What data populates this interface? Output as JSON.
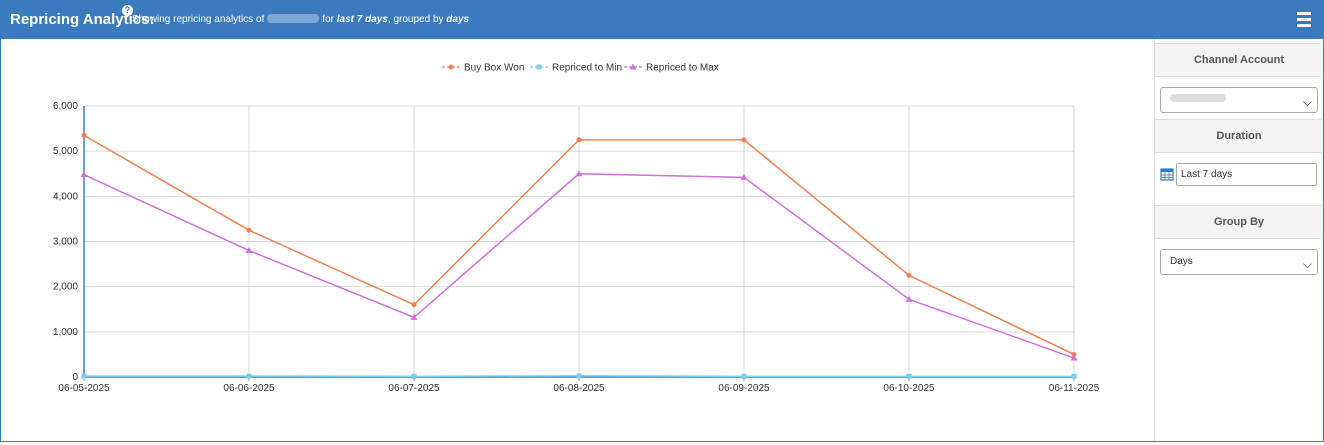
{
  "header": {
    "title": "Repricing Analytics:",
    "help_glyph": "?",
    "subtitle_prefix": "Showing repricing analytics of",
    "subtitle_for": "for",
    "subtitle_duration": "last 7 days",
    "subtitle_grouped": ", grouped by",
    "subtitle_group": "days",
    "menu_icon": "hamburger-menu-icon"
  },
  "sidebar": {
    "channel_account_label": "Channel Account",
    "duration_label": "Duration",
    "duration_value": "Last 7 days",
    "group_by_label": "Group By",
    "group_by_value": "Days",
    "calendar_icon": "calendar-icon"
  },
  "chart_data": {
    "type": "line",
    "x": [
      "06-05-2025",
      "06-06-2025",
      "06-07-2025",
      "06-08-2025",
      "06-09-2025",
      "06-10-2025",
      "06-11-2025"
    ],
    "y_ticks": [
      "0",
      "1,000",
      "2,000",
      "3,000",
      "4,000",
      "5,000",
      "6,000"
    ],
    "ylim": [
      0,
      6000
    ],
    "grid": true,
    "legend_position": "top-center",
    "series": [
      {
        "name": "Buy Box Won",
        "color": "#f08050",
        "marker": "circle",
        "values": [
          5350,
          3250,
          1600,
          5250,
          5250,
          2250,
          500
        ]
      },
      {
        "name": "Repriced to Min",
        "color": "#7ccbf0",
        "marker": "square",
        "values": [
          20,
          20,
          15,
          25,
          15,
          15,
          15
        ]
      },
      {
        "name": "Repriced to Max",
        "color": "#d070d8",
        "marker": "triangle",
        "values": [
          4480,
          2800,
          1320,
          4500,
          4420,
          1720,
          420
        ]
      }
    ]
  }
}
